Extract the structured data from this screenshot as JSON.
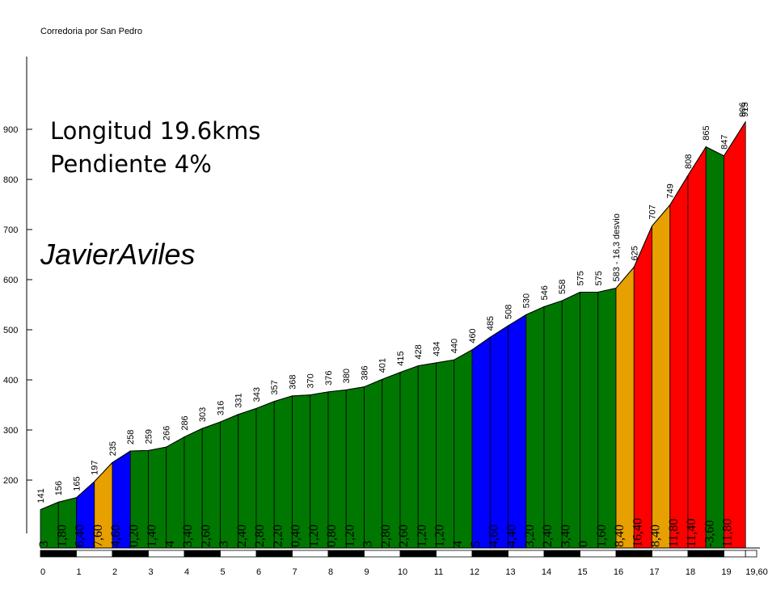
{
  "chart_data": {
    "type": "area",
    "title": "Corredoria por San Pedro",
    "info_lines": [
      "Longitud 19.6kms",
      "Pendiente 4%"
    ],
    "author": "JavierAviles",
    "ylim": [
      100,
      1000
    ],
    "y_ticks": [
      "200",
      "300",
      "400",
      "500",
      "600",
      "700",
      "800",
      "900"
    ],
    "x_ticks": [
      "0",
      "1",
      "2",
      "3",
      "4",
      "5",
      "6",
      "7",
      "8",
      "9",
      "10",
      "11",
      "12",
      "13",
      "14",
      "15",
      "16",
      "17",
      "18",
      "19",
      "19,60"
    ],
    "colors": {
      "green": "#007700",
      "blue": "#0000ff",
      "orange": "#e8a000",
      "red": "#ff0000"
    },
    "segments": [
      {
        "start": 0.0,
        "end": 0.5,
        "e0": 141,
        "e1": 156,
        "elev_label": "141",
        "grade": "3",
        "color": "green"
      },
      {
        "start": 0.5,
        "end": 1.0,
        "e0": 156,
        "e1": 165,
        "elev_label": "156",
        "grade": "1,80",
        "color": "green"
      },
      {
        "start": 1.0,
        "end": 1.5,
        "e0": 165,
        "e1": 197,
        "elev_label": "165",
        "grade": "6,40",
        "color": "blue"
      },
      {
        "start": 1.5,
        "end": 2.0,
        "e0": 197,
        "e1": 235,
        "elev_label": "197",
        "grade": "7,60",
        "color": "orange"
      },
      {
        "start": 2.0,
        "end": 2.5,
        "e0": 235,
        "e1": 258,
        "elev_label": "235",
        "grade": "4,60",
        "color": "blue"
      },
      {
        "start": 2.5,
        "end": 3.0,
        "e0": 258,
        "e1": 259,
        "elev_label": "258",
        "grade": "0,20",
        "color": "green"
      },
      {
        "start": 3.0,
        "end": 3.5,
        "e0": 259,
        "e1": 266,
        "elev_label": "259",
        "grade": "1,40",
        "color": "green"
      },
      {
        "start": 3.5,
        "end": 4.0,
        "e0": 266,
        "e1": 286,
        "elev_label": "266",
        "grade": "4",
        "color": "green"
      },
      {
        "start": 4.0,
        "end": 4.5,
        "e0": 286,
        "e1": 303,
        "elev_label": "286",
        "grade": "3,40",
        "color": "green"
      },
      {
        "start": 4.5,
        "end": 5.0,
        "e0": 303,
        "e1": 316,
        "elev_label": "303",
        "grade": "2,60",
        "color": "green"
      },
      {
        "start": 5.0,
        "end": 5.5,
        "e0": 316,
        "e1": 331,
        "elev_label": "316",
        "grade": "3",
        "color": "green"
      },
      {
        "start": 5.5,
        "end": 6.0,
        "e0": 331,
        "e1": 343,
        "elev_label": "331",
        "grade": "2,40",
        "color": "green"
      },
      {
        "start": 6.0,
        "end": 6.5,
        "e0": 343,
        "e1": 357,
        "elev_label": "343",
        "grade": "2,80",
        "color": "green"
      },
      {
        "start": 6.5,
        "end": 7.0,
        "e0": 357,
        "e1": 368,
        "elev_label": "357",
        "grade": "2,20",
        "color": "green"
      },
      {
        "start": 7.0,
        "end": 7.5,
        "e0": 368,
        "e1": 370,
        "elev_label": "368",
        "grade": "0,40",
        "color": "green"
      },
      {
        "start": 7.5,
        "end": 8.0,
        "e0": 370,
        "e1": 376,
        "elev_label": "370",
        "grade": "1,20",
        "color": "green"
      },
      {
        "start": 8.0,
        "end": 8.5,
        "e0": 376,
        "e1": 380,
        "elev_label": "376",
        "grade": "0,80",
        "color": "green"
      },
      {
        "start": 8.5,
        "end": 9.0,
        "e0": 380,
        "e1": 386,
        "elev_label": "380",
        "grade": "1,20",
        "color": "green"
      },
      {
        "start": 9.0,
        "end": 9.5,
        "e0": 386,
        "e1": 401,
        "elev_label": "386",
        "grade": "3",
        "color": "green"
      },
      {
        "start": 9.5,
        "end": 10.0,
        "e0": 401,
        "e1": 415,
        "elev_label": "401",
        "grade": "2,80",
        "color": "green"
      },
      {
        "start": 10.0,
        "end": 10.5,
        "e0": 415,
        "e1": 428,
        "elev_label": "415",
        "grade": "2,60",
        "color": "green"
      },
      {
        "start": 10.5,
        "end": 11.0,
        "e0": 428,
        "e1": 434,
        "elev_label": "428",
        "grade": "1,20",
        "color": "green"
      },
      {
        "start": 11.0,
        "end": 11.5,
        "e0": 434,
        "e1": 440,
        "elev_label": "434",
        "grade": "1,20",
        "color": "green"
      },
      {
        "start": 11.5,
        "end": 12.0,
        "e0": 440,
        "e1": 460,
        "elev_label": "440",
        "grade": "4",
        "color": "green"
      },
      {
        "start": 12.0,
        "end": 12.5,
        "e0": 460,
        "e1": 485,
        "elev_label": "460",
        "grade": "5",
        "color": "blue"
      },
      {
        "start": 12.5,
        "end": 13.0,
        "e0": 485,
        "e1": 508,
        "elev_label": "485",
        "grade": "4,60",
        "color": "blue"
      },
      {
        "start": 13.0,
        "end": 13.5,
        "e0": 508,
        "e1": 530,
        "elev_label": "508",
        "grade": "4,40",
        "color": "blue"
      },
      {
        "start": 13.5,
        "end": 14.0,
        "e0": 530,
        "e1": 546,
        "elev_label": "530",
        "grade": "3,20",
        "color": "green"
      },
      {
        "start": 14.0,
        "end": 14.5,
        "e0": 546,
        "e1": 558,
        "elev_label": "546",
        "grade": "2,40",
        "color": "green"
      },
      {
        "start": 14.5,
        "end": 15.0,
        "e0": 558,
        "e1": 575,
        "elev_label": "558",
        "grade": "3,40",
        "color": "green"
      },
      {
        "start": 15.0,
        "end": 15.5,
        "e0": 575,
        "e1": 575,
        "elev_label": "575",
        "grade": "0",
        "color": "green"
      },
      {
        "start": 15.5,
        "end": 16.0,
        "e0": 575,
        "e1": 583,
        "elev_label": "575",
        "grade": "1,60",
        "color": "green"
      },
      {
        "start": 16.0,
        "end": 16.5,
        "e0": 583,
        "e1": 625,
        "elev_label": "583 - 16,3 desvio",
        "grade": "8,40",
        "color": "orange"
      },
      {
        "start": 16.5,
        "end": 17.0,
        "e0": 625,
        "e1": 707,
        "elev_label": "625",
        "grade": "16,40",
        "color": "red"
      },
      {
        "start": 17.0,
        "end": 17.5,
        "e0": 707,
        "e1": 749,
        "elev_label": "707",
        "grade": "8,40",
        "color": "orange"
      },
      {
        "start": 17.5,
        "end": 18.0,
        "e0": 749,
        "e1": 808,
        "elev_label": "749",
        "grade": "11,80",
        "color": "red"
      },
      {
        "start": 18.0,
        "end": 18.5,
        "e0": 808,
        "e1": 865,
        "elev_label": "808",
        "grade": "11,40",
        "color": "red"
      },
      {
        "start": 18.5,
        "end": 19.0,
        "e0": 865,
        "e1": 847,
        "elev_label": "865",
        "grade": "-3,60",
        "color": "green"
      },
      {
        "start": 19.0,
        "end": 19.6,
        "e0": 847,
        "e1": 915,
        "elev_label": "847",
        "grade": "11,80",
        "color": "red"
      }
    ],
    "end_labels": [
      "906",
      "915"
    ]
  }
}
